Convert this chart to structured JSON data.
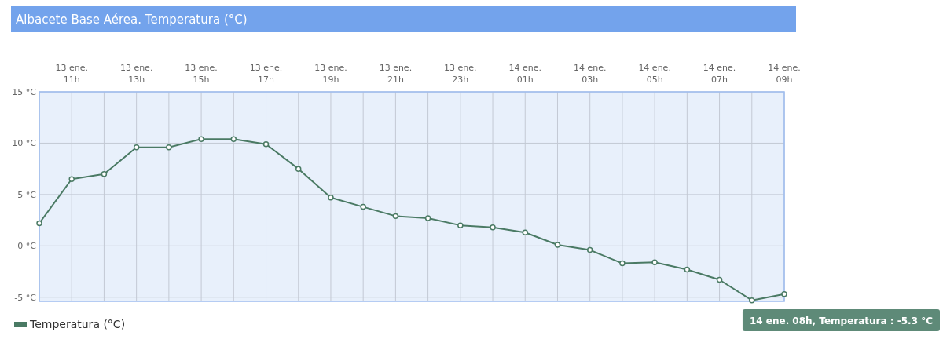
{
  "chart_data": {
    "type": "line",
    "title": "Albacete Base Aérea. Temperatura (°C)",
    "categories": [
      null,
      "13 ene.\n11h",
      null,
      "13 ene.\n13h",
      null,
      "13 ene.\n15h",
      null,
      "13 ene.\n17h",
      null,
      "13 ene.\n19h",
      null,
      "13 ene.\n21h",
      null,
      "13 ene.\n23h",
      null,
      "14 ene.\n01h",
      null,
      "14 ene.\n03h",
      null,
      "14 ene.\n05h",
      null,
      "14 ene.\n07h",
      null,
      "14 ene.\n09h"
    ],
    "series": [
      {
        "name": "Temperatura (°C)",
        "color": "#4a7a64",
        "values": [
          2.2,
          6.5,
          7.0,
          9.6,
          9.6,
          10.4,
          10.4,
          9.9,
          7.5,
          4.7,
          3.8,
          2.9,
          2.7,
          2.0,
          1.8,
          1.3,
          0.1,
          -0.4,
          -1.7,
          -1.6,
          -2.3,
          -3.3,
          -5.3,
          -4.7
        ]
      }
    ],
    "ylim": [
      -5.4,
      15
    ],
    "yticks": [
      {
        "value": -5,
        "label": "-5 °C"
      },
      {
        "value": 0,
        "label": "0 °C"
      },
      {
        "value": 5,
        "label": "5 °C"
      },
      {
        "value": 10,
        "label": "10 °C"
      },
      {
        "value": 15,
        "label": "15 °C"
      }
    ],
    "grid": true,
    "legend": "bottom left",
    "marker": "circle",
    "line_style": "solid",
    "annotations": [
      "14 ene. 08h, Temperatura : -5.3 °C"
    ]
  }
}
